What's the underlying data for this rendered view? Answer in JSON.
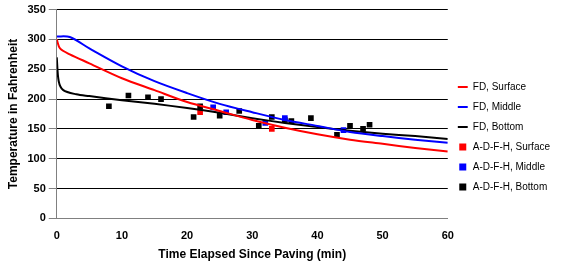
{
  "chart_data": {
    "type": "line",
    "x_label": "Time Elapsed Since Paving (min)",
    "y_label": "Temperature in Fahrenheit",
    "xlim": [
      0,
      60
    ],
    "xticks": [
      0,
      10,
      20,
      30,
      40,
      50,
      60
    ],
    "ylim": [
      0,
      350
    ],
    "yticks": [
      0,
      50,
      100,
      150,
      200,
      250,
      300,
      350
    ],
    "grid": "y",
    "legend": "right",
    "series": [
      {
        "name": "FD, Surface",
        "type": "line",
        "line_style": "solid",
        "color": "#ff0000",
        "x": [
          0,
          0.5,
          2,
          5,
          10,
          15,
          20,
          25,
          30,
          35,
          40,
          45,
          50,
          55,
          60
        ],
        "values": [
          300,
          285,
          275,
          260,
          235,
          215,
          195,
          180,
          165,
          152,
          141,
          132,
          125,
          118,
          112
        ]
      },
      {
        "name": "FD, Middle",
        "type": "line",
        "line_style": "solid",
        "color": "#0000ff",
        "x": [
          0,
          2,
          5,
          10,
          15,
          20,
          25,
          30,
          35,
          40,
          45,
          50,
          55,
          60
        ],
        "values": [
          305,
          304,
          285,
          255,
          230,
          210,
          192,
          178,
          165,
          155,
          145,
          138,
          132,
          127
        ]
      },
      {
        "name": "FD, Bottom",
        "type": "line",
        "line_style": "solid",
        "color": "#000000",
        "x": [
          0,
          0.3,
          1,
          3,
          5,
          10,
          15,
          20,
          25,
          30,
          35,
          40,
          45,
          50,
          55,
          60
        ],
        "values": [
          270,
          230,
          215,
          208,
          205,
          198,
          192,
          185,
          177,
          168,
          160,
          153,
          147,
          142,
          138,
          133
        ]
      },
      {
        "name": "A-D-F-H, Surface",
        "type": "scatter",
        "marker": "square",
        "color": "#ff0000",
        "x": [
          22,
          33
        ],
        "values": [
          178,
          150
        ]
      },
      {
        "name": "A-D-F-H, Middle",
        "type": "scatter",
        "marker": "square",
        "color": "#0000ff",
        "x": [
          24,
          26,
          32,
          35,
          44
        ],
        "values": [
          186,
          178,
          160,
          168,
          148
        ]
      },
      {
        "name": "A-D-F-H, Bottom",
        "type": "scatter",
        "marker": "square",
        "color": "#000000",
        "x": [
          8,
          11,
          14,
          16,
          21,
          22,
          25,
          28,
          31,
          33,
          35,
          36,
          39,
          43,
          45,
          47,
          48
        ],
        "values": [
          188,
          206,
          203,
          200,
          170,
          188,
          172,
          180,
          155,
          170,
          165,
          163,
          168,
          140,
          155,
          150,
          157
        ]
      }
    ]
  }
}
